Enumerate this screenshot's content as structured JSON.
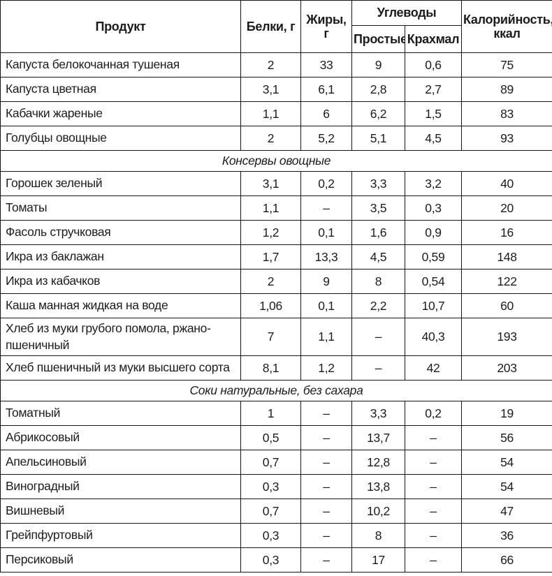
{
  "table": {
    "headers": {
      "product": "Продукт",
      "protein": "Белки, г",
      "fat": "Жиры, г",
      "carbs": "Углеводы",
      "carbs_simple": "Простые",
      "carbs_starch": "Крахмал",
      "calories": "Калорийность,\nккал"
    },
    "rows": [
      {
        "type": "data",
        "product": "Капуста белокочанная тушеная",
        "protein": "2",
        "fat": "33",
        "simple": "9",
        "starch": "0,6",
        "calories": "75"
      },
      {
        "type": "data",
        "product": "Капуста цветная",
        "protein": "3,1",
        "fat": "6,1",
        "simple": "2,8",
        "starch": "2,7",
        "calories": "89"
      },
      {
        "type": "data",
        "product": "Кабачки жареные",
        "protein": "1,1",
        "fat": "6",
        "simple": "6,2",
        "starch": "1,5",
        "calories": "83"
      },
      {
        "type": "data",
        "product": "Голубцы овощные",
        "protein": "2",
        "fat": "5,2",
        "simple": "5,1",
        "starch": "4,5",
        "calories": "93"
      },
      {
        "type": "section",
        "label": "Консервы овощные"
      },
      {
        "type": "data",
        "product": "Горошек зеленый",
        "protein": "3,1",
        "fat": "0,2",
        "simple": "3,3",
        "starch": "3,2",
        "calories": "40"
      },
      {
        "type": "data",
        "product": "Томаты",
        "protein": "1,1",
        "fat": "–",
        "simple": "3,5",
        "starch": "0,3",
        "calories": "20"
      },
      {
        "type": "data",
        "product": "Фасоль стручковая",
        "protein": "1,2",
        "fat": "0,1",
        "simple": "1,6",
        "starch": "0,9",
        "calories": "16"
      },
      {
        "type": "data",
        "product": "Икра из баклажан",
        "protein": "1,7",
        "fat": "13,3",
        "simple": "4,5",
        "starch": "0,59",
        "calories": "148"
      },
      {
        "type": "data",
        "product": "Икра из кабачков",
        "protein": "2",
        "fat": "9",
        "simple": "8",
        "starch": "0,54",
        "calories": "122"
      },
      {
        "type": "data",
        "product": "Каша манная жидкая на воде",
        "protein": "1,06",
        "fat": "0,1",
        "simple": "2,2",
        "starch": "10,7",
        "calories": "60"
      },
      {
        "type": "data",
        "tall": true,
        "product": "Хлеб из муки грубого помола, ржано-\nпшеничный",
        "protein": "7",
        "fat": "1,1",
        "simple": "–",
        "starch": "40,3",
        "calories": "193"
      },
      {
        "type": "data",
        "product": "Хлеб пшеничный из муки высшего сорта",
        "protein": "8,1",
        "fat": "1,2",
        "simple": "–",
        "starch": "42",
        "calories": "203"
      },
      {
        "type": "section",
        "label": "Соки натуральные, без сахара"
      },
      {
        "type": "data",
        "product": "Томатный",
        "protein": "1",
        "fat": "–",
        "simple": "3,3",
        "starch": "0,2",
        "calories": "19"
      },
      {
        "type": "data",
        "product": "Абрикосовый",
        "protein": "0,5",
        "fat": "–",
        "simple": "13,7",
        "starch": "–",
        "calories": "56"
      },
      {
        "type": "data",
        "product": "Апельсиновый",
        "protein": "0,7",
        "fat": "–",
        "simple": "12,8",
        "starch": "–",
        "calories": "54"
      },
      {
        "type": "data",
        "product": "Виноградный",
        "protein": "0,3",
        "fat": "–",
        "simple": "13,8",
        "starch": "–",
        "calories": "54"
      },
      {
        "type": "data",
        "product": "Вишневый",
        "protein": "0,7",
        "fat": "–",
        "simple": "10,2",
        "starch": "–",
        "calories": "47"
      },
      {
        "type": "data",
        "product": "Грейпфуртовый",
        "protein": "0,3",
        "fat": "–",
        "simple": "8",
        "starch": "–",
        "calories": "36"
      },
      {
        "type": "data",
        "product": "Персиковый",
        "protein": "0,3",
        "fat": "–",
        "simple": "17",
        "starch": "–",
        "calories": "66"
      }
    ],
    "colors": {
      "border": "#161616",
      "text": "#1c1c1c",
      "background": "#ffffff"
    }
  }
}
